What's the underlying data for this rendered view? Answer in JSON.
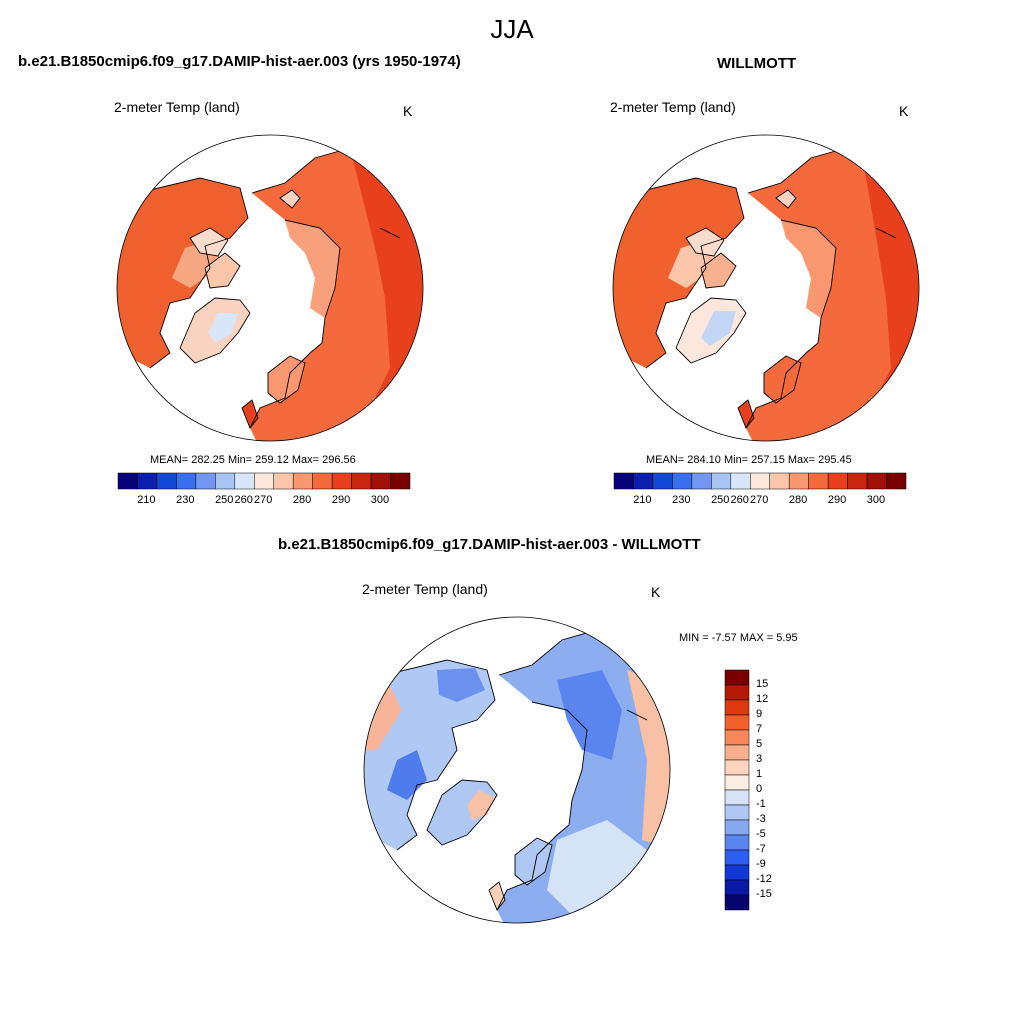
{
  "figure": {
    "title": "JJA"
  },
  "panels": [
    {
      "id": "model",
      "title": "b.e21.B1850cmip6.f09_g17.DAMIP-hist-aer.003 (yrs 1950-1974)",
      "variable": "2-meter Temp (land)",
      "units": "K",
      "stats": "MEAN= 282.25  Min= 259.12  Max= 296.56",
      "colorbar": {
        "ticks": [
          "210",
          "230",
          "250",
          "260",
          "270",
          "280",
          "290",
          "300"
        ],
        "colors": [
          "#08037a",
          "#0a1fae",
          "#1347d8",
          "#3a6ef0",
          "#7097f2",
          "#a9c4f5",
          "#d8e6f8",
          "#fde7dc",
          "#fbc6a9",
          "#f99870",
          "#f46a3d",
          "#e8401c",
          "#c9260f",
          "#a10f06",
          "#7a0000"
        ]
      }
    },
    {
      "id": "obs",
      "title": "WILLMOTT",
      "variable": "2-meter Temp (land)",
      "units": "K",
      "stats": "MEAN= 284.10  Min= 257.15  Max= 295.45",
      "colorbar": {
        "ticks": [
          "210",
          "230",
          "250",
          "260",
          "270",
          "280",
          "290",
          "300"
        ],
        "colors": [
          "#08037a",
          "#0a1fae",
          "#1347d8",
          "#3a6ef0",
          "#7097f2",
          "#a9c4f5",
          "#d8e6f8",
          "#fde7dc",
          "#fbc6a9",
          "#f99870",
          "#f46a3d",
          "#e8401c",
          "#c9260f",
          "#a10f06",
          "#7a0000"
        ]
      }
    },
    {
      "id": "diff",
      "title": "b.e21.B1850cmip6.f09_g17.DAMIP-hist-aer.003 - WILLMOTT",
      "variable": "2-meter Temp (land)",
      "units": "K",
      "stats": "MIN =  -7.57 MAX =   5.95",
      "colorbar": {
        "ticks": [
          "15",
          "12",
          "9",
          "7",
          "5",
          "3",
          "1",
          "0",
          "-1",
          "-3",
          "-5",
          "-7",
          "-9",
          "-12",
          "-15"
        ],
        "colors": [
          "#7a0000",
          "#b51a08",
          "#dd3a12",
          "#f4602c",
          "#f8875a",
          "#fab08c",
          "#fcd3bc",
          "#fdeee5",
          "#d5e3f7",
          "#aec7f3",
          "#86a8f0",
          "#5a85ee",
          "#2f5ff0",
          "#1138d6",
          "#0a1aa6",
          "#06066f"
        ]
      }
    }
  ]
}
